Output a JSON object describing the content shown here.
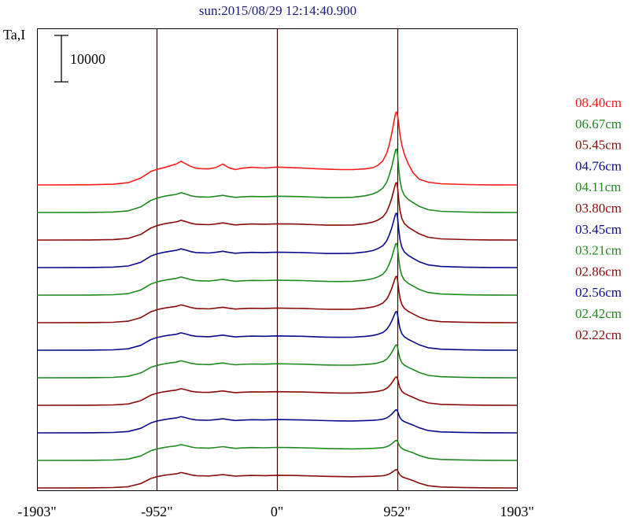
{
  "chart_data": {
    "type": "line",
    "title": "sun:2015/08/29 12:14:40.900",
    "ylabel": "Ta,I",
    "xlabel": "",
    "scale_bar_label": "10000",
    "x_ticks": [
      "-1903\"",
      "-952\"",
      "0\"",
      "952\"",
      "1903\""
    ],
    "x_tick_values": [
      -1903,
      -952,
      0,
      952,
      1903
    ],
    "xlim": [
      -1903,
      1903
    ],
    "vertical_lines_at": [
      -952,
      0,
      952
    ],
    "grid": false,
    "legend_position": "right",
    "profile_x": [
      -1903,
      -1500,
      -1300,
      -1180,
      -1080,
      -1000,
      -952,
      -900,
      -850,
      -800,
      -760,
      -720,
      -680,
      -640,
      -600,
      -540,
      -480,
      -430,
      -380,
      -330,
      -280,
      -200,
      -100,
      0,
      100,
      200,
      300,
      400,
      500,
      600,
      700,
      760,
      800,
      840,
      870,
      890,
      910,
      925,
      935,
      942,
      948,
      952,
      958,
      965,
      975,
      990,
      1010,
      1040,
      1080,
      1130,
      1200,
      1300,
      1500,
      1700,
      1903
    ],
    "colors": {
      "red": "#ff1a1a",
      "green": "#1e8a1e",
      "maroon": "#8b0a0a",
      "blue": "#0a0a8c"
    },
    "series": [
      {
        "name": "08.40cm",
        "color": "#ff1a1a",
        "peak": 10600,
        "h": 1.2,
        "values": [
          0,
          30,
          150,
          500,
          1500,
          2900,
          3350,
          3700,
          4100,
          4500,
          5100,
          4500,
          3950,
          3600,
          3500,
          3450,
          3800,
          4500,
          3700,
          3300,
          3600,
          3800,
          3650,
          3850,
          3750,
          3650,
          3500,
          3400,
          3300,
          3300,
          3450,
          3700,
          4200,
          5200,
          6800,
          8600,
          11000,
          13300,
          14800,
          15600,
          15700,
          15500,
          14700,
          13200,
          10900,
          8600,
          6600,
          4600,
          2600,
          1200,
          600,
          250,
          80,
          20,
          0
        ]
      },
      {
        "name": "06.67cm",
        "color": "#1e8a1e",
        "peak": 10900,
        "h": 1.0
      },
      {
        "name": "05.45cm",
        "color": "#8b0a0a",
        "peak": 9600,
        "h": 1.0
      },
      {
        "name": "04.76cm",
        "color": "#0a0a8c",
        "peak": 9100,
        "h": 0.95
      },
      {
        "name": "04.11cm",
        "color": "#1e8a1e",
        "peak": 8600,
        "h": 0.92
      },
      {
        "name": "03.80cm",
        "color": "#8b0a0a",
        "peak": 7500,
        "h": 0.9
      },
      {
        "name": "03.45cm",
        "color": "#0a0a8c",
        "peak": 5900,
        "h": 0.88
      },
      {
        "name": "03.21cm",
        "color": "#1e8a1e",
        "peak": 4700,
        "h": 0.86
      },
      {
        "name": "02.86cm",
        "color": "#8b0a0a",
        "peak": 3800,
        "h": 0.84
      },
      {
        "name": "02.56cm",
        "color": "#0a0a8c",
        "peak": 2700,
        "h": 0.82
      },
      {
        "name": "02.42cm",
        "color": "#1e8a1e",
        "peak": 2100,
        "h": 0.8
      },
      {
        "name": "02.22cm",
        "color": "#8b0a0a",
        "peak": 1800,
        "h": 0.78
      }
    ],
    "base_profile": [
      0,
      20,
      100,
      350,
      1200,
      2600,
      3100,
      3450,
      3700,
      3900,
      4250,
      3950,
      3600,
      3400,
      3350,
      3300,
      3500,
      3700,
      3450,
      3250,
      3350,
      3450,
      3400,
      3500,
      3450,
      3400,
      3300,
      3200,
      3100,
      3050,
      3050,
      3000,
      2950,
      2850,
      2800,
      2750,
      2750,
      2750,
      2750,
      2750,
      2750,
      2750,
      2750,
      2750,
      2750,
      2700,
      2600,
      2400,
      2000,
      1300,
      600,
      250,
      80,
      20,
      0
    ],
    "peak_shape": [
      0,
      0,
      0,
      0,
      0,
      0,
      0,
      0,
      0,
      0,
      0,
      0,
      0,
      0,
      0,
      0,
      0,
      0,
      0,
      0,
      0,
      0,
      0,
      0,
      0,
      0,
      0,
      0,
      0.01,
      0.02,
      0.05,
      0.09,
      0.14,
      0.22,
      0.34,
      0.48,
      0.65,
      0.82,
      0.93,
      0.99,
      1.0,
      0.98,
      0.85,
      0.62,
      0.38,
      0.2,
      0.1,
      0.04,
      0.01,
      0,
      0,
      0,
      0,
      0,
      0
    ]
  }
}
